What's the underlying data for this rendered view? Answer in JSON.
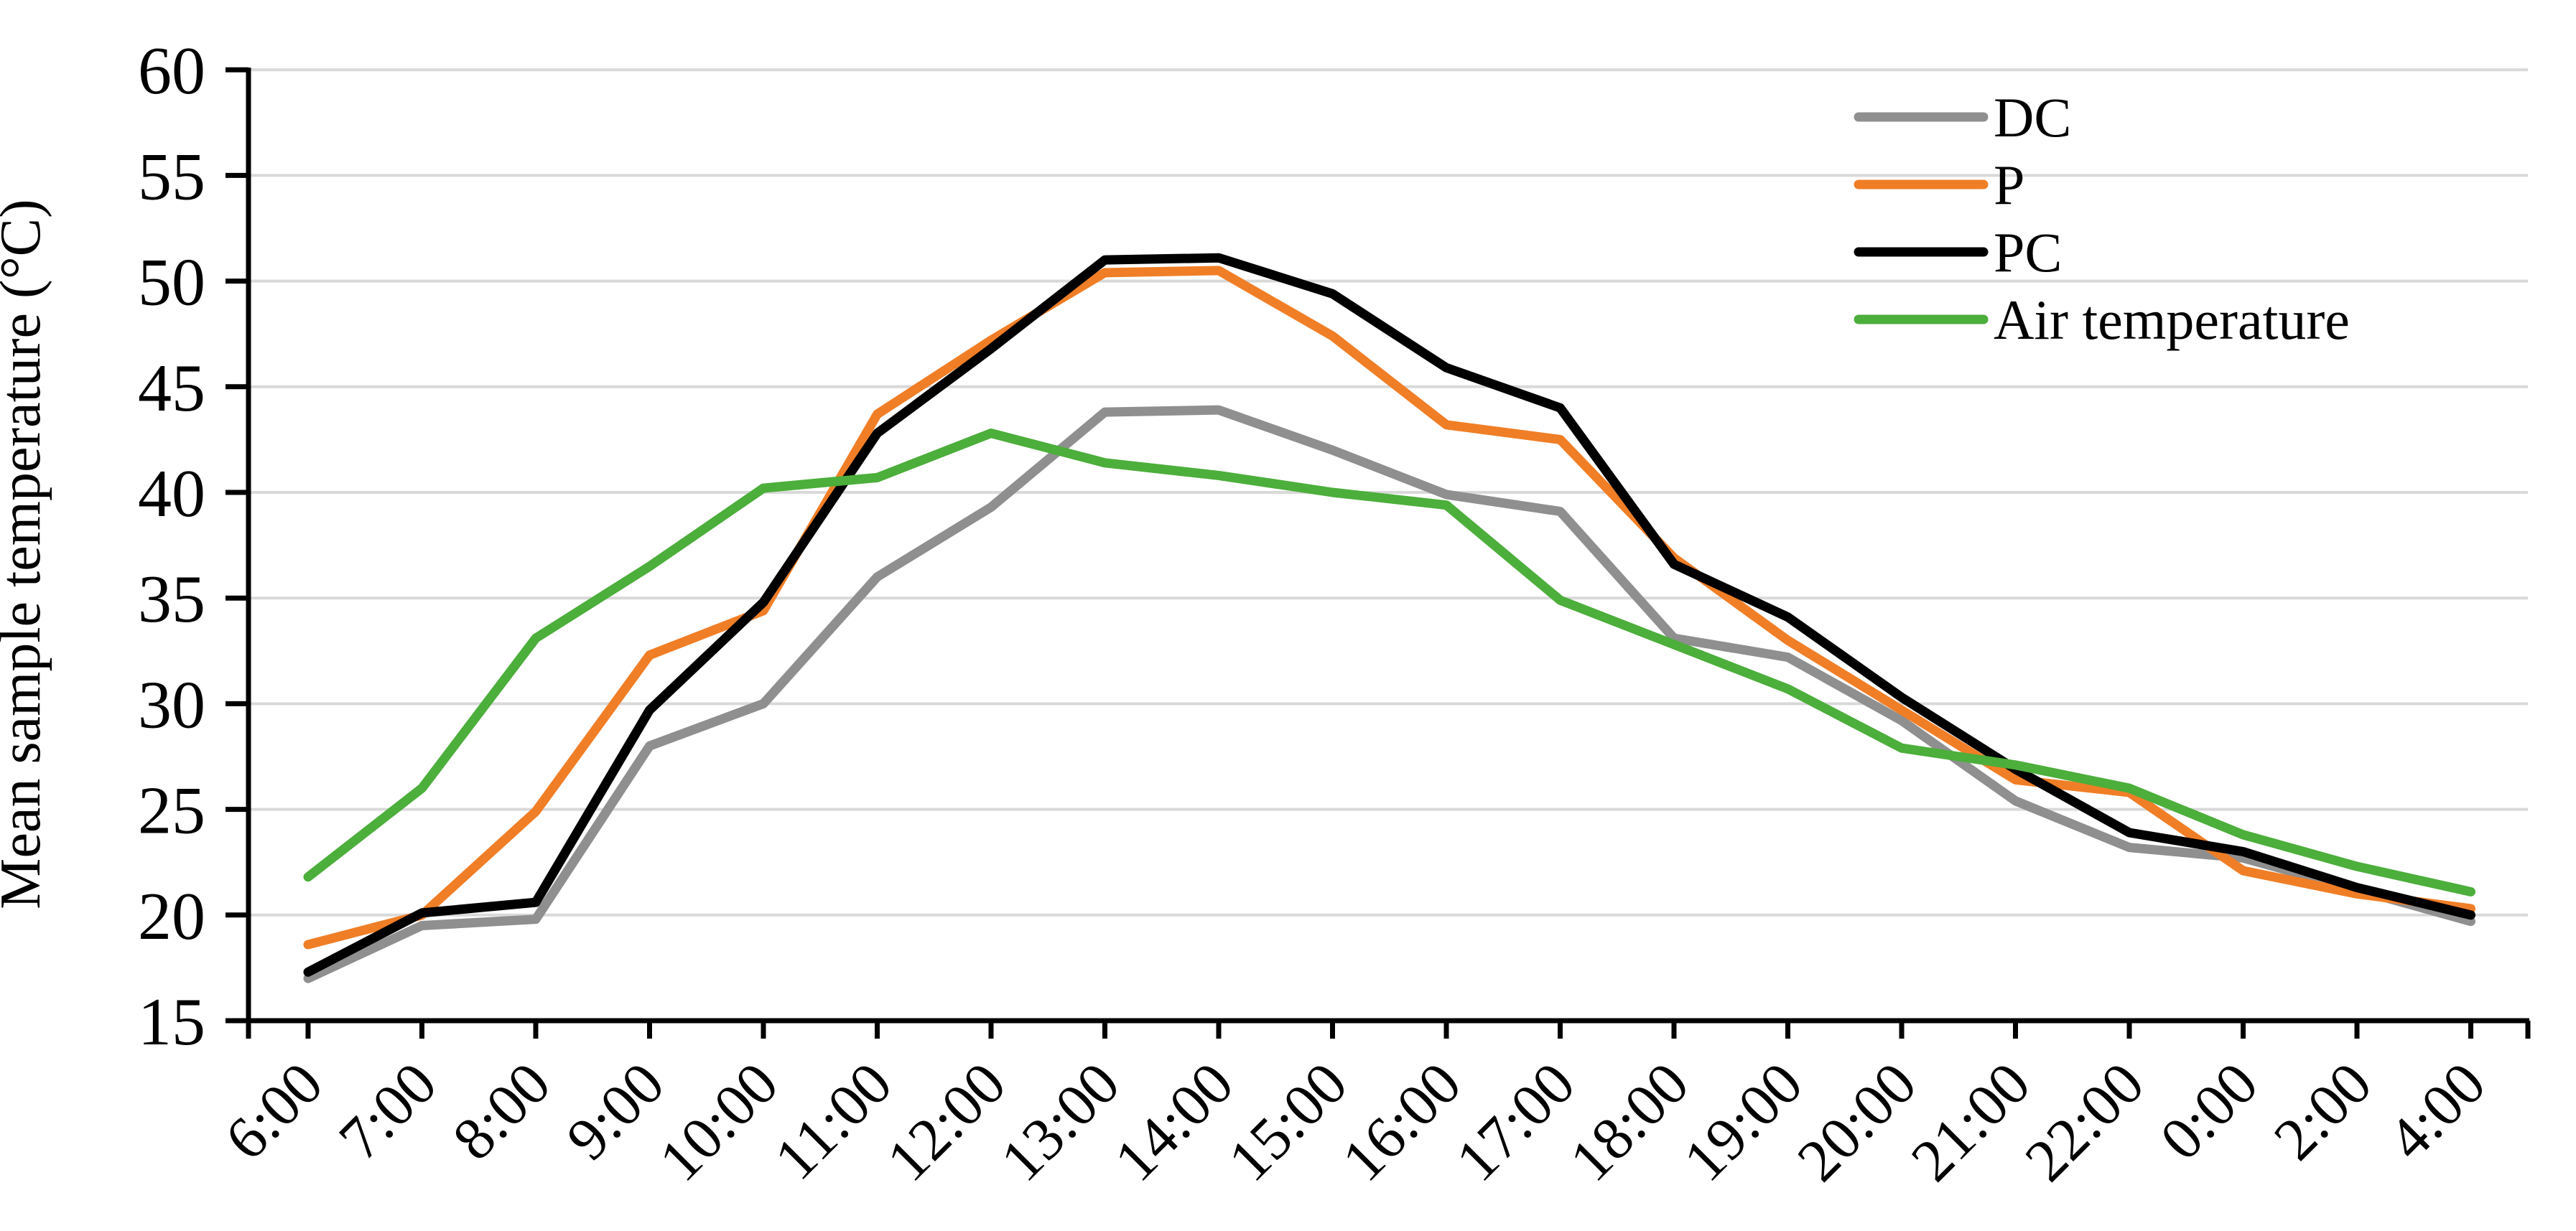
{
  "chart_data": {
    "type": "line",
    "title": "",
    "xlabel": "",
    "ylabel": "Mean sample temperature (°C)",
    "ylim": [
      15,
      60
    ],
    "ytick_step": 5,
    "ytick_labels": [
      "15",
      "20",
      "25",
      "30",
      "35",
      "40",
      "45",
      "50",
      "55",
      "60"
    ],
    "grid": true,
    "legend_position": "top-right",
    "legend": [
      "DC",
      "P",
      "PC",
      "Air temperature"
    ],
    "categories": [
      "6:00",
      "7:00",
      "8:00",
      "9:00",
      "10:00",
      "11:00",
      "12:00",
      "13:00",
      "14:00",
      "15:00",
      "16:00",
      "17:00",
      "18:00",
      "19:00",
      "20:00",
      "21:00",
      "22:00",
      "0:00",
      "2:00",
      "4:00"
    ],
    "series": [
      {
        "name": "DC",
        "color": "#8F8F8F",
        "values": [
          17.0,
          19.5,
          19.8,
          28.0,
          30.0,
          36.0,
          39.3,
          43.8,
          43.9,
          42.0,
          39.9,
          39.1,
          33.1,
          32.2,
          29.2,
          25.4,
          23.2,
          22.7,
          21.2,
          19.7
        ]
      },
      {
        "name": "P",
        "color": "#F07E26",
        "values": [
          18.6,
          20.0,
          24.9,
          32.3,
          34.4,
          43.7,
          47.2,
          50.4,
          50.5,
          47.4,
          43.2,
          42.5,
          36.9,
          33.0,
          29.7,
          26.4,
          25.8,
          22.1,
          21.0,
          20.3
        ]
      },
      {
        "name": "PC",
        "color": "#000000",
        "values": [
          17.3,
          20.1,
          20.6,
          29.7,
          34.8,
          42.8,
          46.8,
          51.0,
          51.1,
          49.4,
          45.9,
          44.0,
          36.6,
          34.1,
          30.3,
          26.9,
          23.9,
          23.0,
          21.3,
          20.0
        ]
      },
      {
        "name": "Air temperature",
        "color": "#4CAE3B",
        "values": [
          21.8,
          26.0,
          33.1,
          36.5,
          40.2,
          40.7,
          42.8,
          41.4,
          40.8,
          40.0,
          39.4,
          34.9,
          32.8,
          30.7,
          27.9,
          27.1,
          26.0,
          23.8,
          22.3,
          21.1
        ]
      }
    ],
    "colors": {
      "axis": "#000000",
      "gridline": "#D9D9D9",
      "background": "#FFFFFF"
    }
  }
}
